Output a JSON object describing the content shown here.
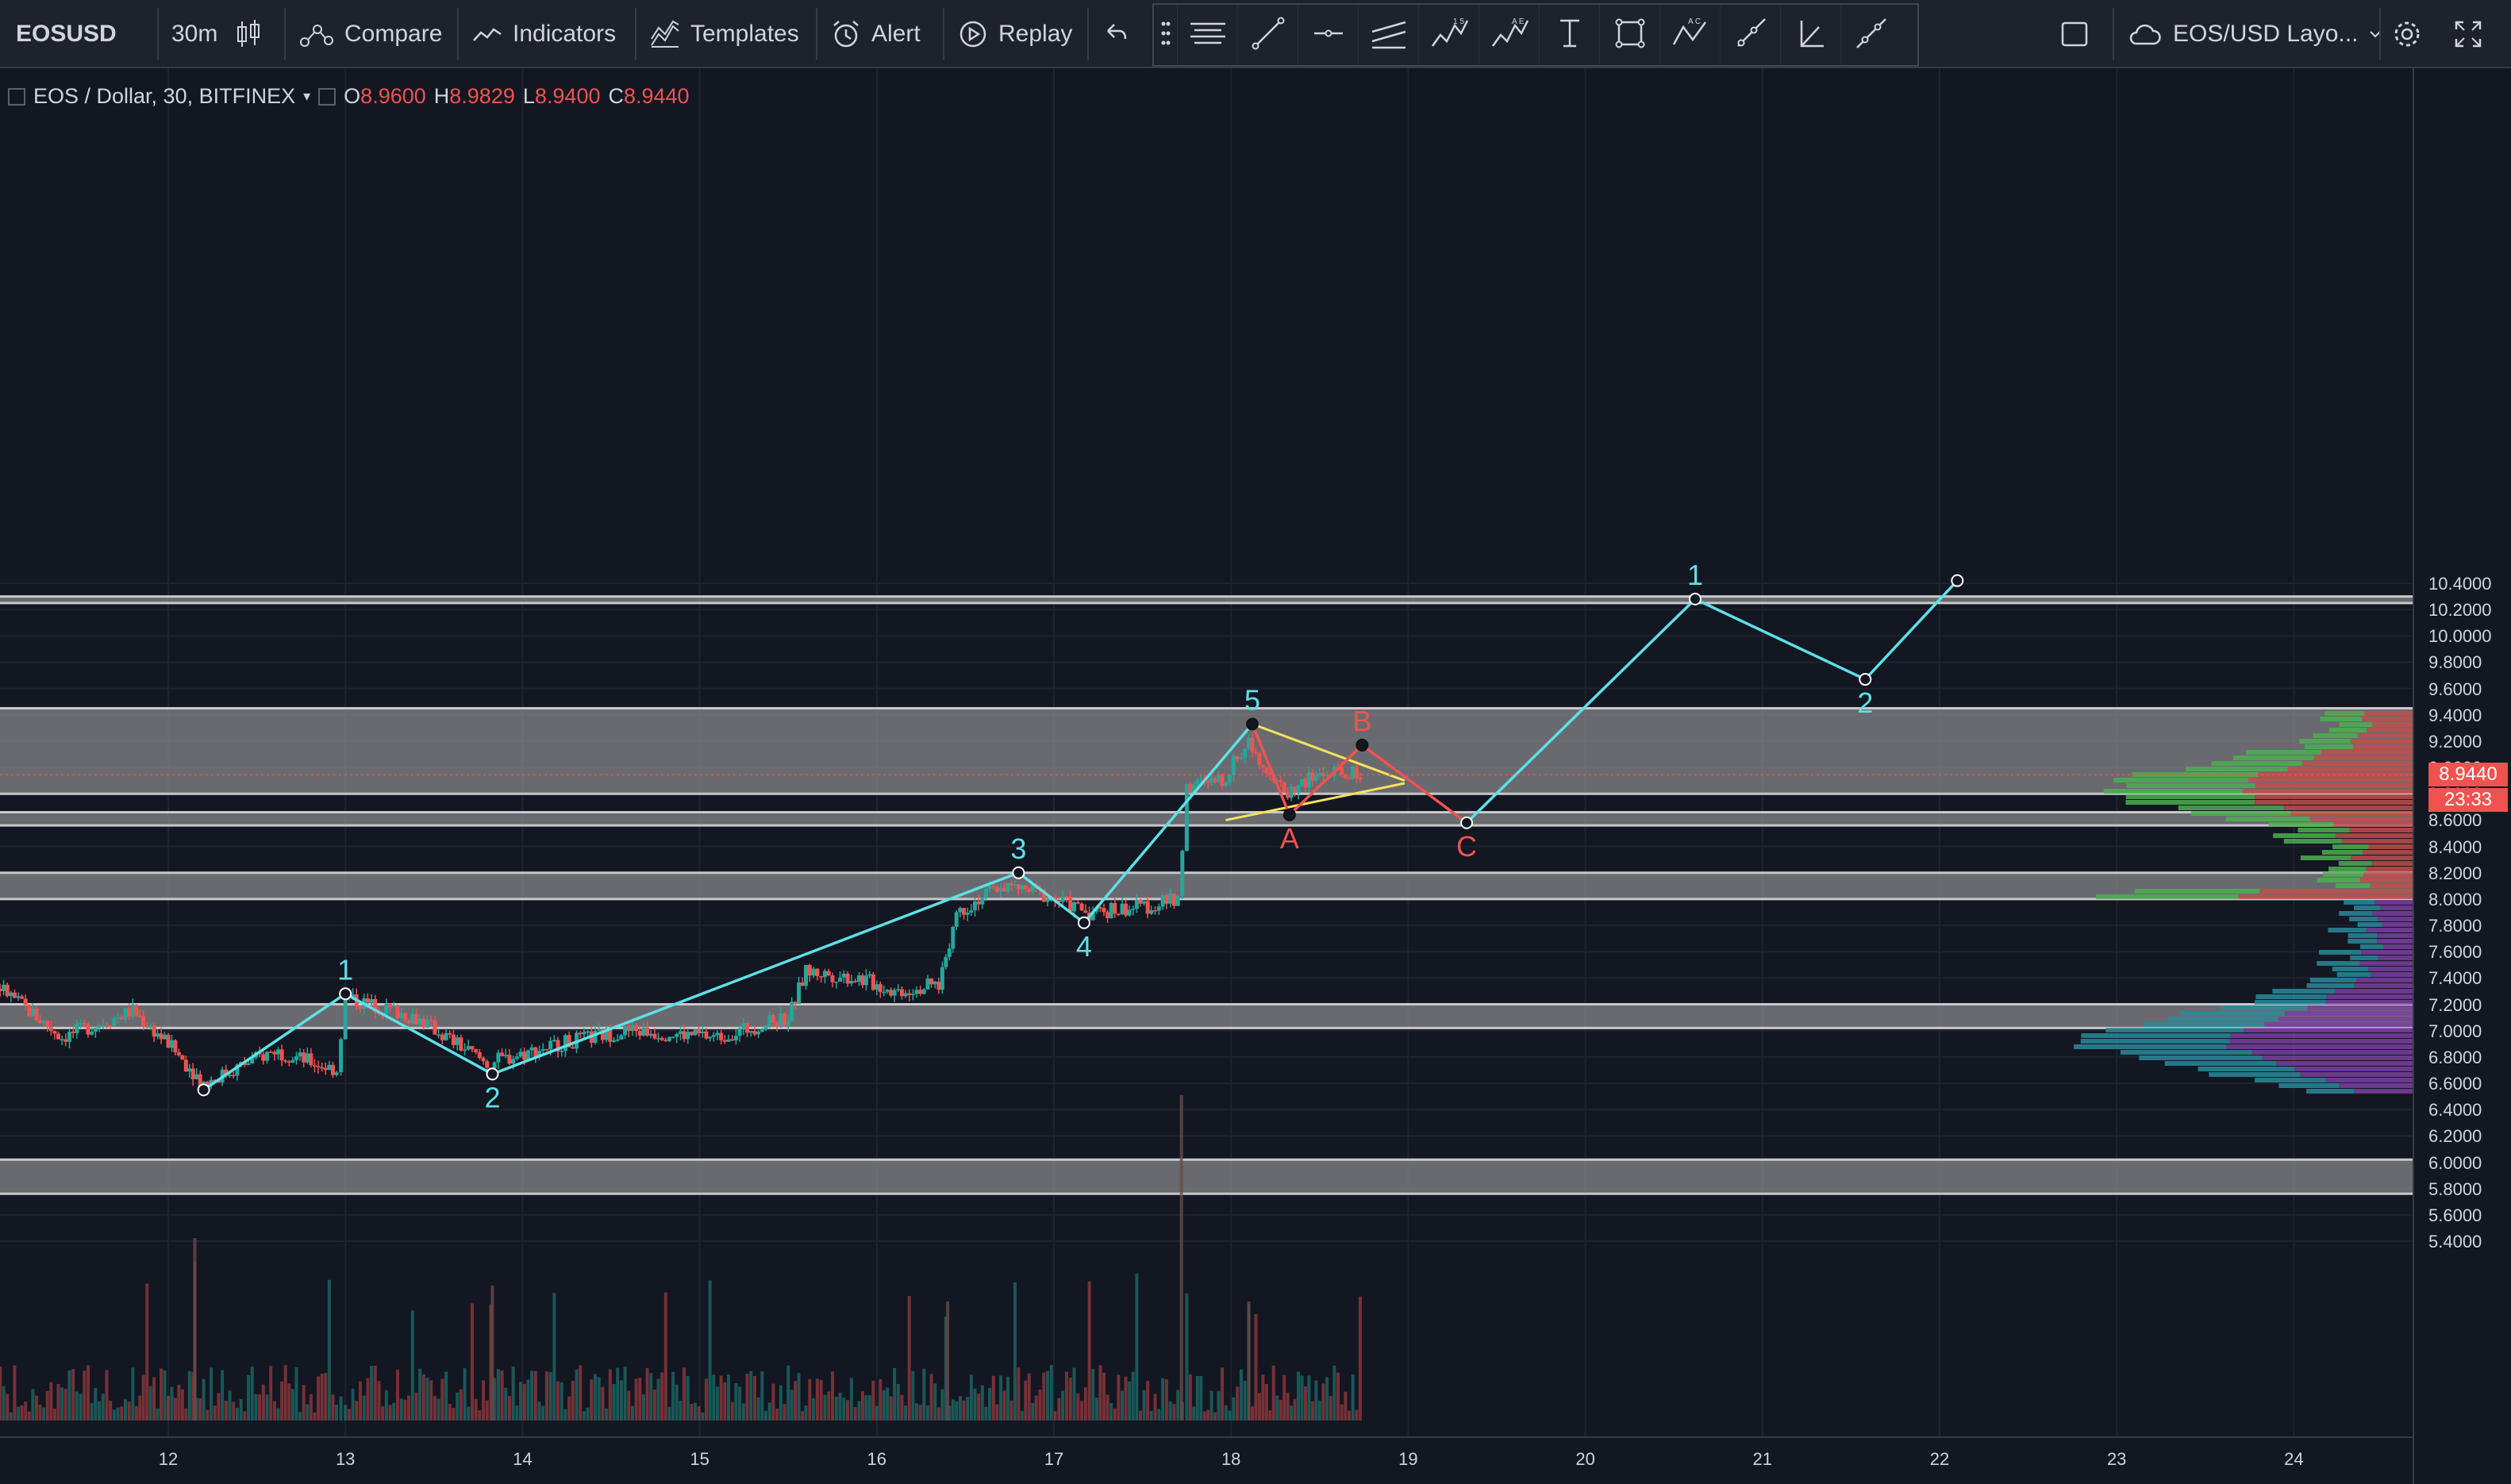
{
  "toolbar": {
    "symbol": "EOSUSD",
    "interval": "30m",
    "compare_label": "Compare",
    "indicators_label": "Indicators",
    "templates_label": "Templates",
    "alert_label": "Alert",
    "replay_label": "Replay",
    "layout_label": "EOS/USD Layo..."
  },
  "legend": {
    "title": "EOS / Dollar, 30, BITFINEX",
    "o_label": "O",
    "o_value": "8.9600",
    "h_label": "H",
    "h_value": "8.9829",
    "l_label": "L",
    "l_value": "8.9400",
    "c_label": "C",
    "c_value": "8.9440"
  },
  "price_axis": {
    "labels": [
      "10.4000",
      "10.2000",
      "10.0000",
      "9.8000",
      "9.6000",
      "9.4000",
      "9.2000",
      "9.0000",
      "8.8000",
      "8.6000",
      "8.4000",
      "8.2000",
      "8.0000",
      "7.8000",
      "7.6000",
      "7.4000",
      "7.2000",
      "7.0000",
      "6.8000",
      "6.6000",
      "6.4000",
      "6.2000",
      "6.0000",
      "5.8000",
      "5.6000",
      "5.4000"
    ],
    "last_price": "8.9440",
    "countdown": "23:33"
  },
  "time_axis": {
    "labels": [
      "12",
      "13",
      "14",
      "15",
      "16",
      "17",
      "18",
      "19",
      "20",
      "21",
      "22",
      "23",
      "24"
    ]
  },
  "zones": [
    {
      "top": 10.3,
      "bottom": 10.25
    },
    {
      "top": 9.45,
      "bottom": 8.8
    },
    {
      "top": 8.66,
      "bottom": 8.56
    },
    {
      "top": 8.2,
      "bottom": 8.0
    },
    {
      "top": 7.2,
      "bottom": 7.02
    },
    {
      "top": 6.02,
      "bottom": 5.76
    }
  ],
  "elliott_impulse": {
    "points": [
      {
        "day": 12.2,
        "price": 6.55,
        "label": ""
      },
      {
        "day": 13.0,
        "price": 7.28,
        "label": "1"
      },
      {
        "day": 13.83,
        "price": 6.67,
        "label": "2"
      },
      {
        "day": 16.8,
        "price": 8.2,
        "label": "3"
      },
      {
        "day": 17.17,
        "price": 7.82,
        "label": "4"
      },
      {
        "day": 18.12,
        "price": 9.33,
        "label": "5"
      }
    ]
  },
  "elliott_correction": {
    "points": [
      {
        "day": 18.12,
        "price": 9.33,
        "label": ""
      },
      {
        "day": 18.33,
        "price": 8.64,
        "label": "A"
      },
      {
        "day": 18.74,
        "price": 9.17,
        "label": "B"
      },
      {
        "day": 19.33,
        "price": 8.58,
        "label": "C"
      }
    ]
  },
  "projection": {
    "points": [
      {
        "day": 19.33,
        "price": 8.58,
        "label": ""
      },
      {
        "day": 20.62,
        "price": 10.28,
        "label": "1"
      },
      {
        "day": 21.58,
        "price": 9.67,
        "label": "2"
      },
      {
        "day": 22.1,
        "price": 10.42,
        "label": ""
      }
    ]
  },
  "triangle": {
    "upper": [
      {
        "day": 18.12,
        "price": 9.33
      },
      {
        "day": 18.98,
        "price": 8.9
      }
    ],
    "lower": [
      {
        "day": 17.97,
        "price": 8.6
      },
      {
        "day": 18.98,
        "price": 8.88
      }
    ]
  },
  "colors": {
    "wave": "#5ce1e6",
    "correction": "#ef5350",
    "triangle": "#f5e35a",
    "zone": "#8a8a8e",
    "up_candle": "#26a69a",
    "down_candle": "#ef5350",
    "last_price": "#ef5350"
  }
}
